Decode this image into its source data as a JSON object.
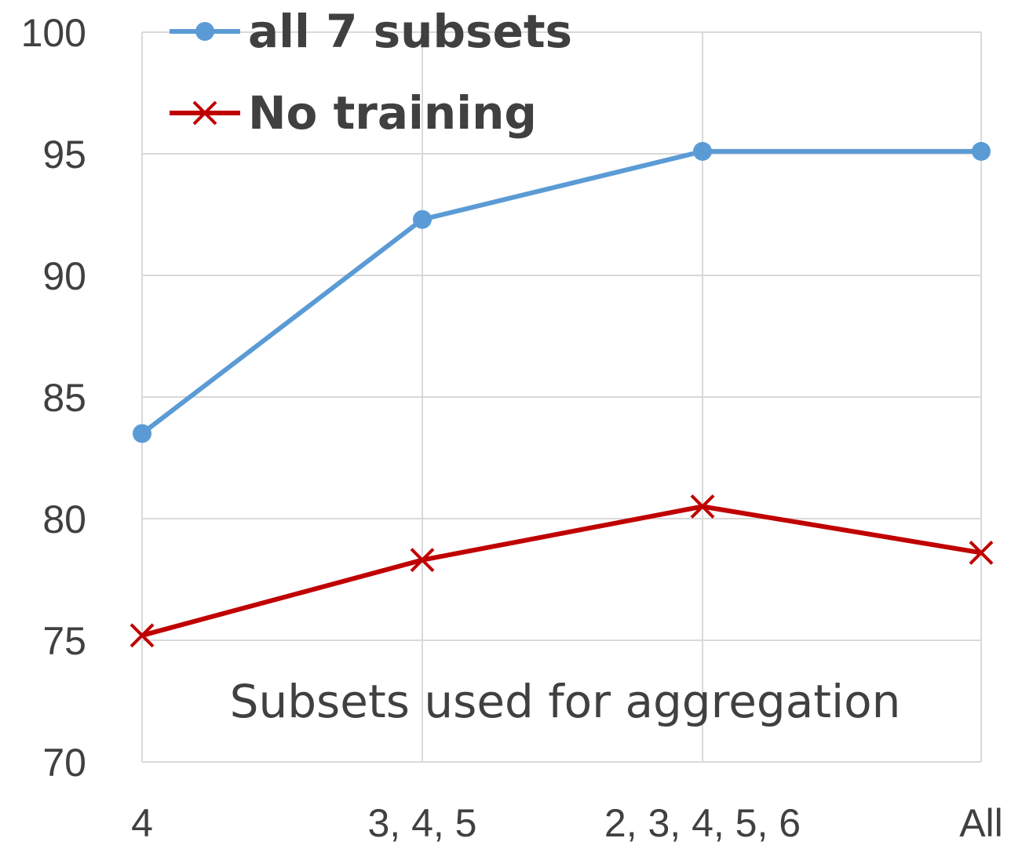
{
  "chart_data": {
    "type": "line",
    "categories": [
      "4",
      "3, 4, 5",
      "2, 3, 4, 5, 6",
      "All"
    ],
    "series": [
      {
        "name": "all 7 subsets",
        "values": [
          83.5,
          92.3,
          95.1,
          95.1
        ],
        "color": "#5b9bd5",
        "marker": "circle"
      },
      {
        "name": "No training",
        "values": [
          75.2,
          78.3,
          80.5,
          78.6
        ],
        "color": "#c00000",
        "marker": "x"
      }
    ],
    "xlabel": "Subsets used for aggregation",
    "ylabel": "",
    "ylim": [
      70,
      100
    ],
    "yticks": [
      70,
      75,
      80,
      85,
      90,
      95,
      100
    ],
    "grid": true,
    "legend": "top-left"
  }
}
